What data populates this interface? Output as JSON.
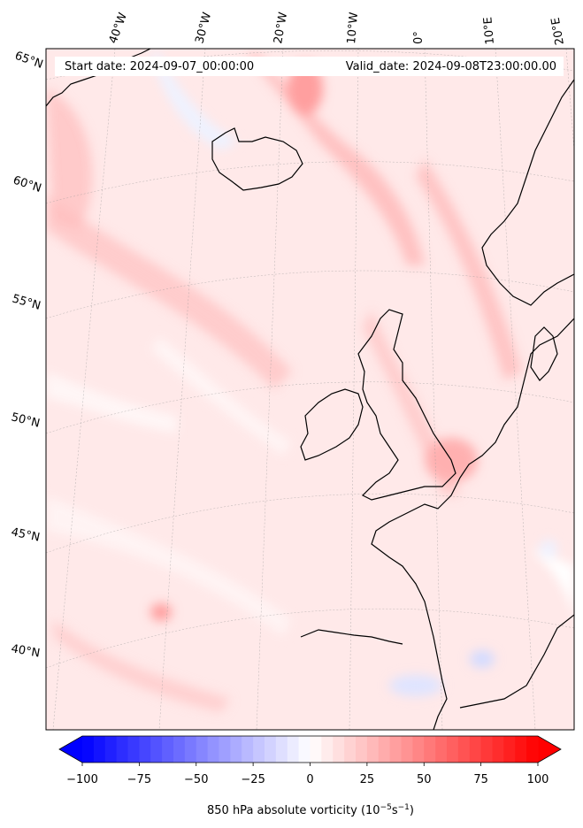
{
  "header": {
    "start_date": "Start date: 2024-09-07_00:00:00",
    "valid_date": "Valid_date: 2024-09-08T23:00:00.00"
  },
  "lon_labels": [
    "40°W",
    "30°W",
    "20°W",
    "10°W",
    "0°",
    "10°E",
    "20°E"
  ],
  "lat_labels": [
    "65°N",
    "60°N",
    "55°N",
    "50°N",
    "45°N",
    "40°N"
  ],
  "colorbar": {
    "min": -100,
    "max": 100,
    "step": 5,
    "extend": "both",
    "colormap": "bwr",
    "ticks": [
      "−100",
      "−75",
      "−50",
      "−25",
      "0",
      "25",
      "50",
      "75",
      "100"
    ],
    "tick_values": [
      -100,
      -75,
      -50,
      -25,
      0,
      25,
      50,
      75,
      100
    ],
    "label_main": "850 hPa absolute vorticity (10",
    "label_exp1": "−5",
    "label_mid": "s",
    "label_exp2": "−1",
    "label_end": ")"
  },
  "colors": {
    "background_field": "#ffe6e6",
    "coastline": "#000000"
  }
}
